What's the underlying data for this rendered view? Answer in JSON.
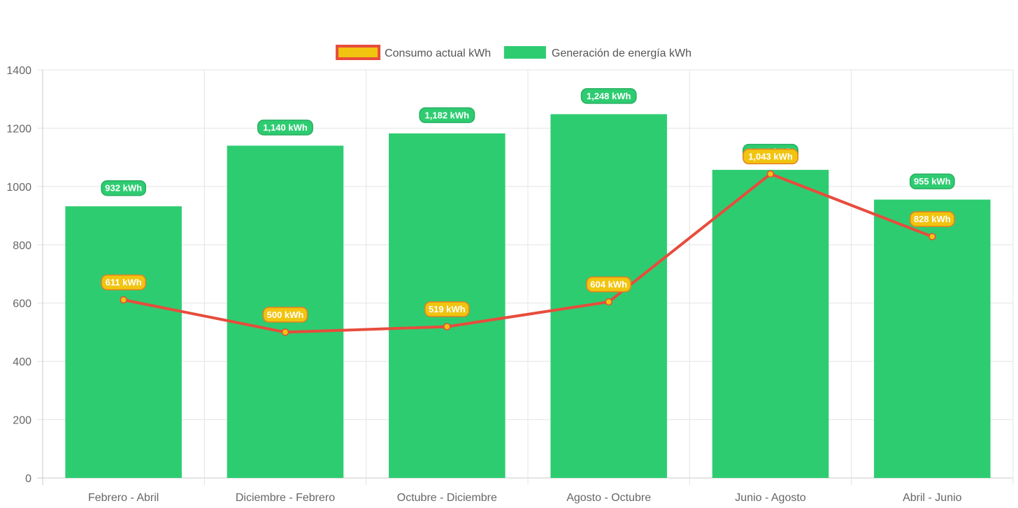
{
  "chart_data": {
    "type": "bar",
    "categories": [
      "Febrero - Abril",
      "Diciembre - Febrero",
      "Octubre - Diciembre",
      "Agosto - Octubre",
      "Junio - Agosto",
      "Abril - Junio"
    ],
    "series": [
      {
        "name": "Consumo actual kWh",
        "type": "line",
        "values": [
          611,
          500,
          519,
          604,
          1043,
          828
        ],
        "labels": [
          "611 kWh",
          "500 kWh",
          "519 kWh",
          "604 kWh",
          "1,043 kWh",
          "828 kWh"
        ],
        "color": "#e74c3c",
        "fill": "#f1c40f"
      },
      {
        "name": "Generación de energía kWh",
        "type": "bar",
        "values": [
          932,
          1140,
          1182,
          1248,
          1057,
          955
        ],
        "labels": [
          "932 kWh",
          "1,140 kWh",
          "1,182 kWh",
          "1,248 kWh",
          "1,057 kWh",
          "955 kWh"
        ],
        "color": "#2ecc71"
      }
    ],
    "ylim": [
      0,
      1400
    ],
    "yticks": [
      "0",
      "200",
      "400",
      "600",
      "800",
      "1000",
      "1200",
      "1400"
    ],
    "grid": true,
    "legend": "top"
  }
}
